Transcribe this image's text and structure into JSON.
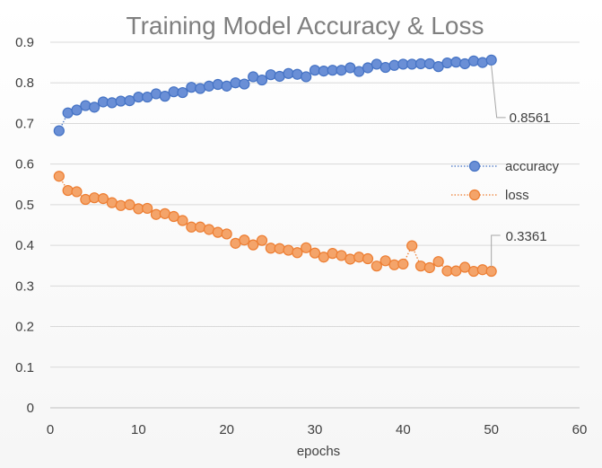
{
  "chart_data": {
    "type": "line",
    "title": "Training Model Accuracy & Loss",
    "xlabel": "epochs",
    "ylabel": "",
    "xlim": [
      0,
      60
    ],
    "ylim": [
      0,
      0.9
    ],
    "xticks": [
      "0",
      "10",
      "20",
      "30",
      "40",
      "50",
      "60"
    ],
    "yticks": [
      "0",
      "0.1",
      "0.2",
      "0.3",
      "0.4",
      "0.5",
      "0.6",
      "0.7",
      "0.8",
      "0.9"
    ],
    "grid": "horizontal",
    "legend_position": "right",
    "series": [
      {
        "name": "accuracy",
        "color": "#4472c4",
        "fill": "#6a8fd6",
        "x": [
          1,
          2,
          3,
          4,
          5,
          6,
          7,
          8,
          9,
          10,
          11,
          12,
          13,
          14,
          15,
          16,
          17,
          18,
          19,
          20,
          21,
          22,
          23,
          24,
          25,
          26,
          27,
          28,
          29,
          30,
          31,
          32,
          33,
          34,
          35,
          36,
          37,
          38,
          39,
          40,
          41,
          42,
          43,
          44,
          45,
          46,
          47,
          48,
          49,
          50
        ],
        "values": [
          0.682,
          0.726,
          0.733,
          0.744,
          0.74,
          0.753,
          0.751,
          0.755,
          0.756,
          0.765,
          0.765,
          0.773,
          0.767,
          0.778,
          0.776,
          0.789,
          0.786,
          0.792,
          0.796,
          0.792,
          0.8,
          0.797,
          0.815,
          0.807,
          0.82,
          0.816,
          0.823,
          0.821,
          0.815,
          0.831,
          0.829,
          0.831,
          0.831,
          0.837,
          0.828,
          0.837,
          0.846,
          0.838,
          0.843,
          0.846,
          0.846,
          0.847,
          0.847,
          0.84,
          0.849,
          0.851,
          0.847,
          0.854,
          0.85,
          0.8561
        ],
        "end_label": "0.8561"
      },
      {
        "name": "loss",
        "color": "#ed7d31",
        "fill": "#f4a46a",
        "x": [
          1,
          2,
          3,
          4,
          5,
          6,
          7,
          8,
          9,
          10,
          11,
          12,
          13,
          14,
          15,
          16,
          17,
          18,
          19,
          20,
          21,
          22,
          23,
          24,
          25,
          26,
          27,
          28,
          29,
          30,
          31,
          32,
          33,
          34,
          35,
          36,
          37,
          38,
          39,
          40,
          41,
          42,
          43,
          44,
          45,
          46,
          47,
          48,
          49,
          50
        ],
        "values": [
          0.57,
          0.535,
          0.532,
          0.513,
          0.517,
          0.515,
          0.505,
          0.498,
          0.5,
          0.49,
          0.491,
          0.476,
          0.478,
          0.471,
          0.461,
          0.445,
          0.445,
          0.439,
          0.432,
          0.428,
          0.405,
          0.413,
          0.401,
          0.412,
          0.393,
          0.392,
          0.388,
          0.382,
          0.394,
          0.381,
          0.371,
          0.38,
          0.375,
          0.366,
          0.371,
          0.367,
          0.349,
          0.362,
          0.352,
          0.354,
          0.399,
          0.349,
          0.345,
          0.36,
          0.337,
          0.337,
          0.346,
          0.336,
          0.34,
          0.3361
        ],
        "end_label": "0.3361"
      }
    ]
  }
}
